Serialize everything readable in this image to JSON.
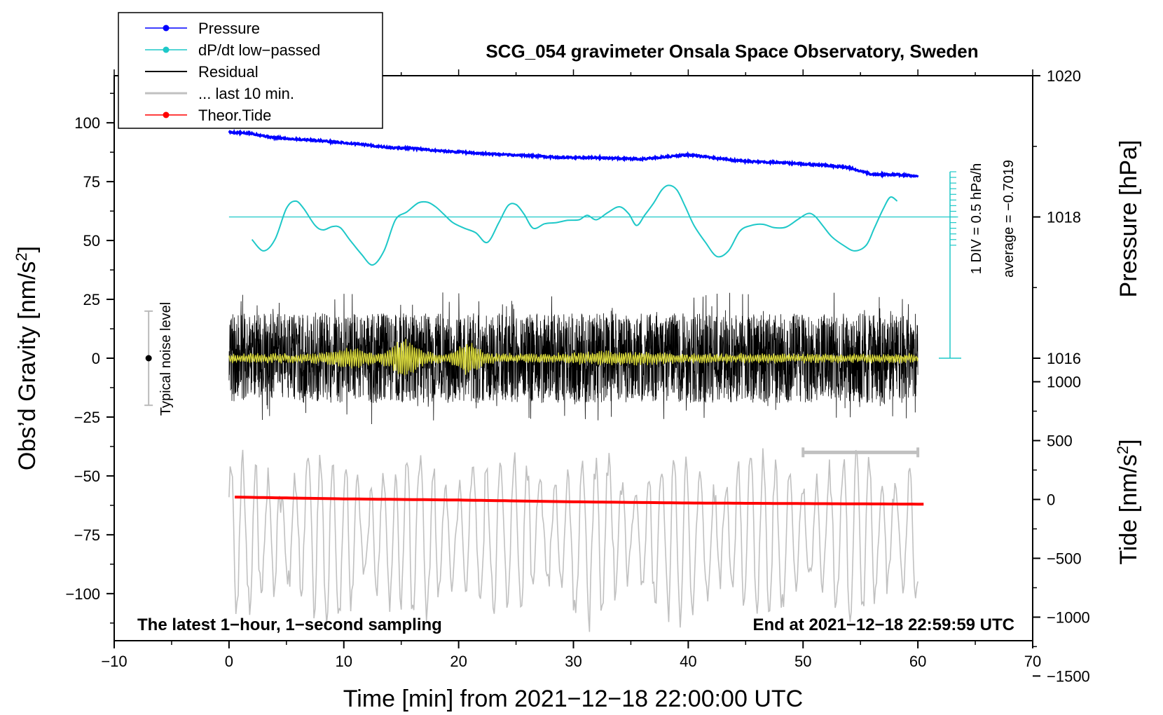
{
  "chart_data": {
    "type": "line",
    "title": "SCG_054 gravimeter Onsala Space Observatory, Sweden",
    "xlabel": "Time [min] from 2021−12−18 22:00:00 UTC",
    "ylabel": "Obs’d Gravity [nm/s",
    "ylabel_sup": "2",
    "ylabel_end": "]",
    "y2label": "Pressure [hPa]",
    "y3label": "Tide [nm/s",
    "y3label_sup": "2",
    "y3label_end": "]",
    "xlim": [
      -10,
      70
    ],
    "ylim": [
      -120,
      120
    ],
    "x_ticks": [
      "−10",
      "0",
      "10",
      "20",
      "30",
      "40",
      "50",
      "60",
      "70"
    ],
    "x_tick_values": [
      -10,
      0,
      10,
      20,
      30,
      40,
      50,
      60,
      70
    ],
    "y_ticks": [
      "100",
      "75",
      "50",
      "25",
      "0",
      "−25",
      "−50",
      "−75",
      "−100"
    ],
    "y_tick_values": [
      100,
      75,
      50,
      25,
      0,
      -25,
      -50,
      -75,
      -100
    ],
    "pressure_axis": {
      "ticks": [
        "1020",
        "1018",
        "1016"
      ],
      "tick_values": [
        1020,
        1018,
        1016
      ],
      "anchor": {
        "value": 1018,
        "gravity": 60
      },
      "gravity_per_hPa": 30
    },
    "tide_axis": {
      "ticks": [
        "1000",
        "500",
        "0",
        "−500",
        "−1000",
        "−1500"
      ],
      "tick_values": [
        1000,
        500,
        0,
        -500,
        -1000,
        -1500
      ],
      "gravity_per_unit": 0.05,
      "offset_gravity": -60
    },
    "series": [
      {
        "name": "Pressure",
        "color": "#0000ff",
        "unit": "hPa",
        "x": [
          0,
          2,
          4,
          6,
          8,
          10,
          12,
          14,
          16,
          18,
          20,
          22,
          24,
          26,
          28,
          30,
          32,
          34,
          36,
          38,
          40,
          42,
          44,
          46,
          48,
          50,
          52,
          54,
          56,
          58,
          60
        ],
        "values": [
          1019.2,
          1019.18,
          1019.12,
          1019.1,
          1019.08,
          1019.05,
          1019.02,
          1018.98,
          1018.97,
          1018.94,
          1018.92,
          1018.9,
          1018.88,
          1018.87,
          1018.85,
          1018.84,
          1018.84,
          1018.83,
          1018.82,
          1018.85,
          1018.88,
          1018.84,
          1018.8,
          1018.78,
          1018.77,
          1018.75,
          1018.73,
          1018.7,
          1018.6,
          1018.6,
          1018.58
        ]
      },
      {
        "name": "dP/dt low−passed",
        "color": "#1ec8c8",
        "unit": "DIV",
        "x": [
          2,
          3,
          4,
          5,
          5.8,
          6.5,
          7.5,
          8.2,
          9,
          9.7,
          10.5,
          11.5,
          12.5,
          13.5,
          14.5,
          15.5,
          16.5,
          17.3,
          18,
          18.7,
          19.5,
          20.5,
          21.5,
          22.5,
          23.5,
          24.3,
          25,
          25.7,
          26.5,
          27.5,
          28.5,
          29.5,
          30.5,
          31.2,
          32,
          33,
          34,
          34.8,
          35.5,
          36.2,
          37,
          37.7,
          38.3,
          39,
          39.7,
          40.5,
          41.5,
          42.5,
          43.5,
          44.5,
          45.5,
          46.5,
          47.5,
          48.5,
          49.5,
          50.4,
          51,
          51.7,
          52.5,
          53.5,
          54.5,
          55.5,
          56.2,
          57,
          57.6,
          58.2
        ],
        "values": [
          -4.0,
          -6.0,
          -4.0,
          1.5,
          2.8,
          1.5,
          -1.5,
          -2.3,
          -1.7,
          -1.9,
          -4.0,
          -6.5,
          -8.5,
          -6.0,
          -0.5,
          0.9,
          2.5,
          2.6,
          1.8,
          0.5,
          -1.0,
          -2.0,
          -2.8,
          -4.5,
          -1.0,
          2.0,
          2.2,
          0.5,
          -2.0,
          -1.2,
          -1.0,
          -0.6,
          -0.5,
          0.3,
          -0.5,
          0.8,
          1.8,
          0.6,
          -1.5,
          0.3,
          2.5,
          4.8,
          5.6,
          4.8,
          2.0,
          -1.5,
          -4.5,
          -7.0,
          -6.0,
          -2.5,
          -1.5,
          -1.3,
          -1.9,
          -1.8,
          -0.5,
          0.6,
          0.2,
          -1.5,
          -3.5,
          -5.0,
          -6.0,
          -5.0,
          -2.0,
          1.5,
          3.5,
          2.8
        ]
      },
      {
        "name": "Residual",
        "color": "#000000",
        "unit": "nm/s2",
        "x": [
          0,
          60
        ],
        "values": [
          0,
          0
        ]
      },
      {
        "name": "... last 10 min.",
        "color": "#c0c0c0",
        "unit": "nm/s2",
        "x": [
          0,
          60
        ],
        "values": [
          -75,
          -75
        ]
      },
      {
        "name": "Theor.Tide",
        "color": "#ff0000",
        "unit": "nm/s2",
        "x": [
          0.5,
          10,
          20,
          30,
          40,
          50,
          60.5
        ],
        "values": [
          20,
          5,
          -5,
          -20,
          -30,
          -35,
          -40
        ]
      }
    ],
    "dpdt_scale": {
      "zero_pressure": 1018,
      "hpa_per_div": 0.08,
      "baseline_label": "average = −0.7019",
      "div_label": "1 DIV = 0.5 hPa/h"
    },
    "legend_entries": [
      "Pressure",
      "dP/dt low−passed",
      "Residual",
      "... last 10 min.",
      "Theor.Tide"
    ],
    "legend_position": "top-left",
    "annotations": {
      "noise_label": "Typical noise level",
      "noise_range": [
        -20,
        20
      ],
      "noise_x": -7,
      "last10_range": [
        50,
        60
      ],
      "last10_y": -40,
      "bottom_left": "The latest 1−hour, 1−second sampling",
      "bottom_right": "End at 2021−12−18 22:59:59 UTC"
    }
  }
}
